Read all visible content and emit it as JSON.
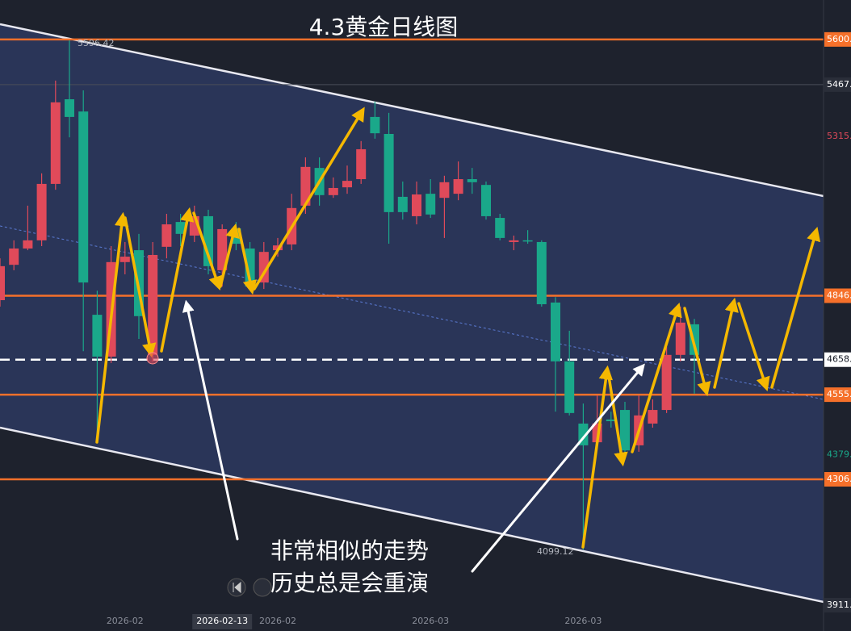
{
  "chart_data": {
    "type": "candlestick",
    "title": "4.3黄金日线图",
    "annotations": [
      "非常相似的走势",
      "历史总是会重演"
    ],
    "high_label": "5596.42",
    "low_label": "4099.12",
    "up_color": "#e04a5a",
    "down_color": "#1aa88a",
    "level_color": "#f5702a",
    "levels": [
      5600,
      4846,
      4555,
      4306
    ],
    "price_line": 4658,
    "ylim": [
      3912,
      5716
    ],
    "yticks": [
      {
        "value": 5600,
        "label": "5600."
      },
      {
        "value": 5467,
        "label": "5467."
      },
      {
        "value": 5315,
        "label": "5315."
      },
      {
        "value": 4846,
        "label": "4846."
      },
      {
        "value": 4658,
        "label": "4658."
      },
      {
        "value": 4555,
        "label": "4555."
      },
      {
        "value": 4379,
        "label": "4379."
      },
      {
        "value": 4306,
        "label": "4306."
      },
      {
        "value": 3911,
        "label": "3911."
      }
    ],
    "ytick_colors": [
      "#f5702a",
      "#2a2e39",
      "#e04a5a",
      "#f5702a",
      "#ffffff",
      "#f5702a",
      "#1aa88a",
      "#f5702a",
      "#2a2e39"
    ],
    "categories": [
      null,
      null,
      null,
      null,
      null,
      null,
      null,
      null,
      null,
      "2026-02",
      null,
      null,
      null,
      null,
      null,
      null,
      "2026-02-13",
      null,
      null,
      null,
      "2026-02",
      null,
      null,
      null,
      null,
      null,
      null,
      null,
      null,
      null,
      null,
      "2026-03",
      null,
      null,
      null,
      null,
      null,
      null,
      null,
      null,
      null,
      null,
      "2026-03",
      null,
      null,
      null,
      null,
      null,
      null,
      null,
      null
    ],
    "open": [
      4833,
      4937,
      4985,
      5009,
      5175,
      5424,
      5388,
      4790,
      4667,
      4945,
      4980,
      4672,
      4990,
      5063,
      5023,
      5080,
      4921,
      5044,
      4985,
      4885,
      4980,
      4997,
      5111,
      5222,
      5142,
      5165,
      5189,
      5372,
      5322,
      5137,
      5080,
      5146,
      5134,
      5146,
      5189,
      5172,
      5075,
      5004,
      5009,
      5004,
      4826,
      4653,
      4470,
      4415,
      4482,
      4510,
      4406,
      4470,
      4510,
      4672,
      4762
    ],
    "close": [
      4933,
      4985,
      5009,
      5175,
      5415,
      5372,
      4885,
      4667,
      4945,
      4961,
      4786,
      4966,
      5056,
      5028,
      5080,
      4933,
      5042,
      4999,
      4873,
      4975,
      4994,
      5104,
      5225,
      5142,
      5163,
      5184,
      5277,
      5324,
      5092,
      5092,
      5144,
      5085,
      5180,
      5189,
      5180,
      5080,
      5016,
      5009,
      5006,
      4821,
      4653,
      4501,
      4406,
      4470,
      4477,
      4391,
      4494,
      4510,
      4672,
      4767,
      4672
    ],
    "high": [
      4956,
      5009,
      5111,
      5206,
      5479,
      5597,
      5450,
      4861,
      4992,
      5004,
      5028,
      5004,
      5087,
      5087,
      5111,
      5099,
      5056,
      5063,
      5004,
      5004,
      5016,
      5146,
      5253,
      5253,
      5194,
      5229,
      5301,
      5417,
      5384,
      5182,
      5182,
      5189,
      5199,
      5241,
      5222,
      5182,
      5087,
      5023,
      5039,
      5009,
      4842,
      4743,
      4529,
      4553,
      4505,
      4534,
      4553,
      4541,
      4695,
      4814,
      4778
    ],
    "low": [
      4814,
      4921,
      4980,
      4992,
      5158,
      5312,
      4683,
      4415,
      4648,
      4909,
      4719,
      4653,
      4956,
      4992,
      5004,
      4909,
      4873,
      4980,
      4861,
      4866,
      4961,
      4980,
      5087,
      5111,
      5134,
      5146,
      5175,
      5308,
      4999,
      5070,
      5056,
      5075,
      5016,
      5127,
      5146,
      5070,
      5009,
      4980,
      4999,
      4814,
      4505,
      4494,
      4099,
      4399,
      4458,
      4368,
      4387,
      4458,
      4501,
      4653,
      4558
    ]
  }
}
